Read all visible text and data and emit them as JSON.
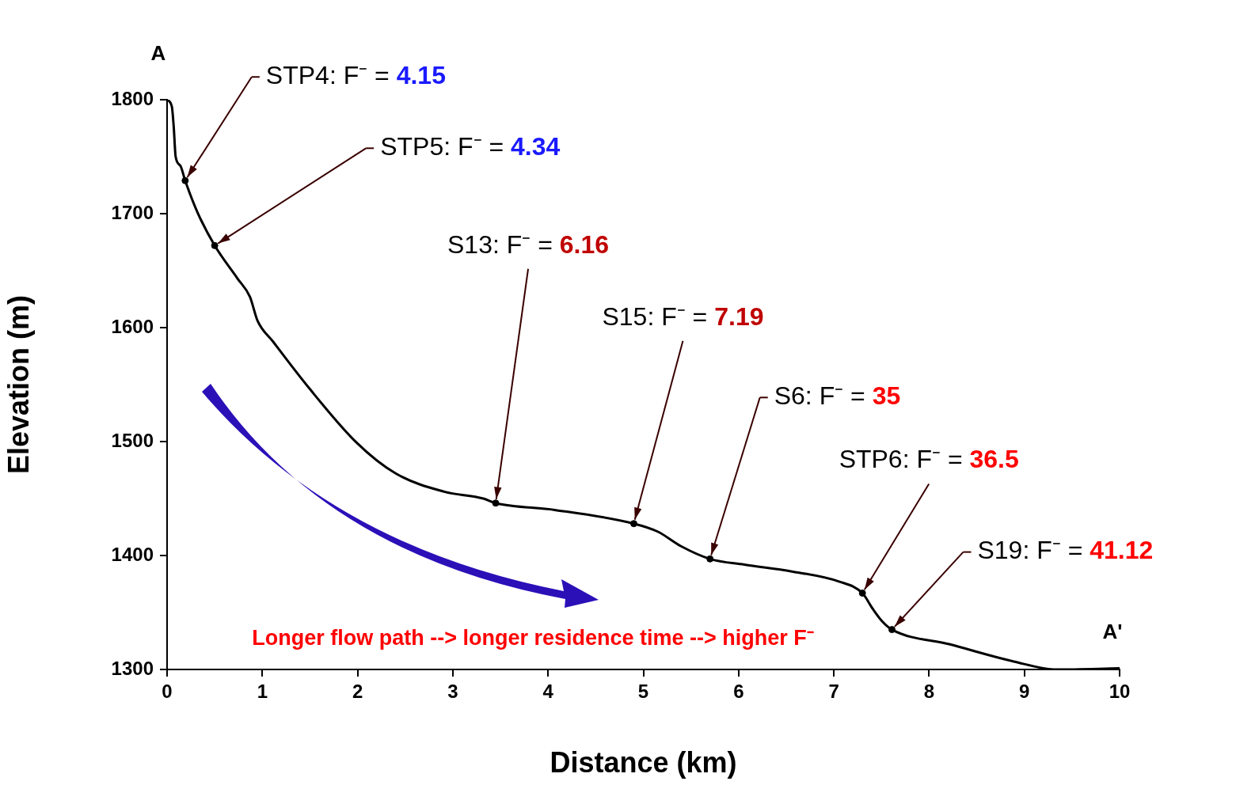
{
  "chart_data": {
    "type": "line",
    "xlabel": "Distance (km)",
    "ylabel": "Elevation (m)",
    "xlim": [
      0,
      10
    ],
    "ylim": [
      1300,
      1800
    ],
    "xticks": [
      0,
      1,
      2,
      3,
      4,
      5,
      6,
      7,
      8,
      9,
      10
    ],
    "yticks": [
      1300,
      1400,
      1500,
      1600,
      1700,
      1800
    ],
    "grid": false,
    "legend": false,
    "series": [
      {
        "color": "#000000",
        "marker": "none",
        "x": [
          0,
          0.05,
          0.07,
          0.09,
          0.14,
          0.19,
          0.32,
          0.5,
          0.74,
          0.87,
          0.95,
          1.11,
          1.49,
          1.99,
          2.4,
          2.91,
          3.32,
          3.45,
          4.07,
          4.9,
          5.15,
          5.4,
          5.7,
          6.06,
          6.56,
          7.06,
          7.3,
          7.41,
          7.51,
          7.61,
          8.22,
          8.89,
          9.34,
          10
        ],
        "values": [
          1800,
          1794,
          1776,
          1750,
          1742,
          1729,
          1701,
          1672,
          1643,
          1627,
          1606,
          1588,
          1547,
          1499,
          1472,
          1456,
          1450,
          1446,
          1440,
          1428,
          1421,
          1408,
          1397,
          1392,
          1386,
          1377,
          1367,
          1353,
          1342,
          1335,
          1322,
          1307,
          1300,
          1301
        ]
      },
      {
        "type": "scatter",
        "color": "#000000",
        "marker": "circle",
        "x": [
          0.19,
          0.5,
          3.45,
          4.9,
          5.7,
          7.3,
          7.61
        ],
        "values": [
          1729,
          1672,
          1446,
          1428,
          1397,
          1367,
          1335
        ]
      }
    ],
    "annotations": [
      {
        "text": "STP4: F⁻ = 4.15",
        "x": 0.19,
        "y": 1729
      },
      {
        "text": "STP5: F⁻ = 4.34",
        "x": 0.5,
        "y": 1672
      },
      {
        "text": "S13: F⁻ = 6.16",
        "x": 3.45,
        "y": 1446
      },
      {
        "text": "S15: F⁻ = 7.19",
        "x": 4.9,
        "y": 1428
      },
      {
        "text": "S6: F⁻ = 35",
        "x": 5.7,
        "y": 1397
      },
      {
        "text": "STP6: F⁻ = 36.5",
        "x": 7.3,
        "y": 1367
      },
      {
        "text": "S19: F⁻ = 41.12",
        "x": 7.61,
        "y": 1335
      },
      {
        "text": "A",
        "x": 0,
        "y": 1800
      },
      {
        "text": "A'",
        "x": 10,
        "y": 1301
      },
      "Longer flow path --> longer residence time --> higher F⁻"
    ]
  }
}
